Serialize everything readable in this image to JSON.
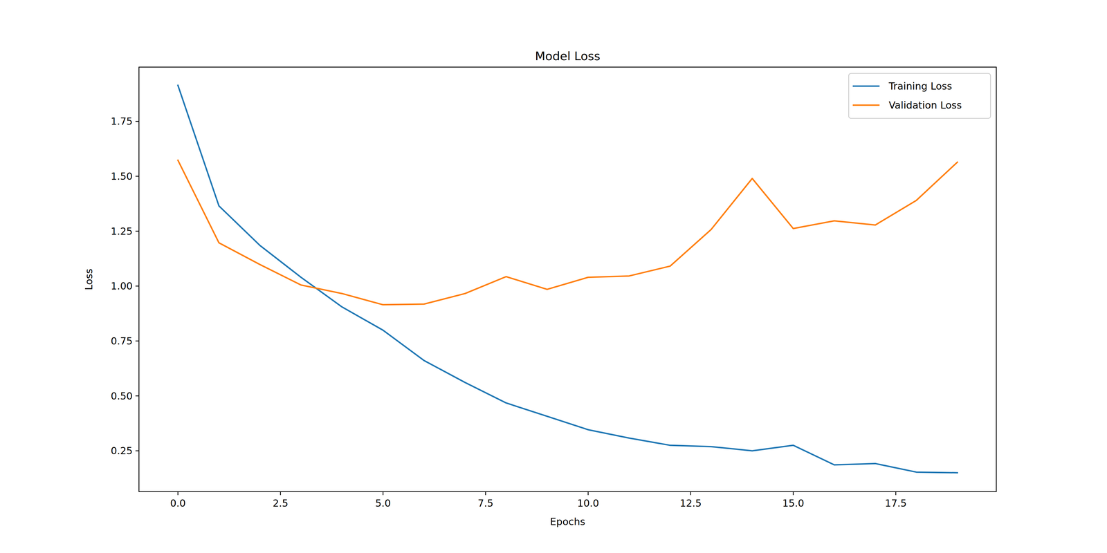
{
  "chart_data": {
    "type": "line",
    "title": "Model Loss",
    "x_label": "Epochs",
    "y_label": "Loss",
    "x": [
      0,
      1,
      2,
      3,
      4,
      5,
      6,
      7,
      8,
      9,
      10,
      11,
      12,
      13,
      14,
      15,
      16,
      17,
      18,
      19
    ],
    "series": [
      {
        "name": "Training Loss",
        "color": "#1f77b4",
        "values": [
          1.914,
          1.365,
          1.185,
          1.04,
          0.905,
          0.799,
          0.661,
          0.561,
          0.468,
          0.407,
          0.346,
          0.308,
          0.275,
          0.269,
          0.25,
          0.275,
          0.186,
          0.192,
          0.153,
          0.15
        ]
      },
      {
        "name": "Validation Loss",
        "color": "#ff7f0e",
        "values": [
          1.573,
          1.197,
          1.098,
          1.005,
          0.966,
          0.915,
          0.918,
          0.966,
          1.043,
          0.985,
          1.04,
          1.046,
          1.091,
          1.258,
          1.49,
          1.262,
          1.297,
          1.278,
          1.39,
          1.564
        ]
      }
    ],
    "xlim": [
      -0.95,
      19.95
    ],
    "ylim": [
      0.064,
      1.997
    ],
    "xticks": [
      {
        "value": 0,
        "label": "0.0"
      },
      2.5,
      {
        "value": 5,
        "label": "5.0"
      },
      7.5,
      {
        "value": 10,
        "label": "10.0"
      },
      12.5,
      {
        "value": 15,
        "label": "15.0"
      },
      17.5
    ],
    "yticks": [
      0.25,
      {
        "value": 0.5,
        "label": "0.50"
      },
      0.75,
      {
        "value": 1,
        "label": "1.00"
      },
      1.25,
      {
        "value": 1.5,
        "label": "1.50"
      },
      1.75
    ],
    "grid": false,
    "legend": "upper right"
  }
}
